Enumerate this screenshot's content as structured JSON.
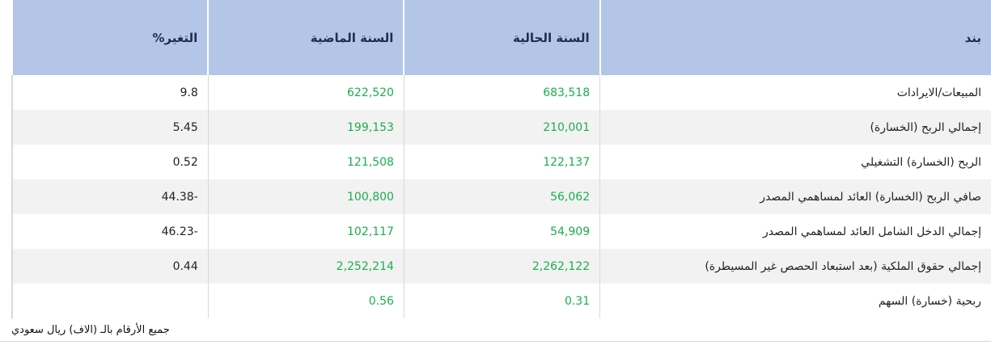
{
  "table": {
    "headers": [
      "بند",
      "السنة الحالية",
      "السنة الماضية",
      "التغير%"
    ],
    "rows": [
      {
        "item": "المبيعات/الايرادات",
        "current": "683,518",
        "previous": "622,520",
        "change": "9.8"
      },
      {
        "item": "إجمالي الربح (الخسارة)",
        "current": "210,001",
        "previous": "199,153",
        "change": "5.45"
      },
      {
        "item": "الربح (الخسارة) التشغيلي",
        "current": "122,137",
        "previous": "121,508",
        "change": "0.52"
      },
      {
        "item": "صافي الربح (الخسارة) العائد لمساهمي المصدر",
        "current": "56,062",
        "previous": "100,800",
        "change": "-44.38"
      },
      {
        "item": "إجمالي الدخل الشامل العائد لمساهمي المصدر",
        "current": "54,909",
        "previous": "102,117",
        "change": "-46.23"
      },
      {
        "item": "إجمالي حقوق الملكية (بعد استبعاد الحصص غير المسيطرة)",
        "current": "2,262,122",
        "previous": "2,252,214",
        "change": "0.44"
      },
      {
        "item": "ربحية (خسارة) السهم",
        "current": "0.31",
        "previous": "0.56",
        "change": ""
      }
    ]
  },
  "note": "جميع الأرقام بالـ (الاف) ريال سعودي",
  "colors": {
    "header_bg": "#b4c6e7",
    "value_green": "#1aae4e",
    "alt_row": "#f2f2f2"
  }
}
